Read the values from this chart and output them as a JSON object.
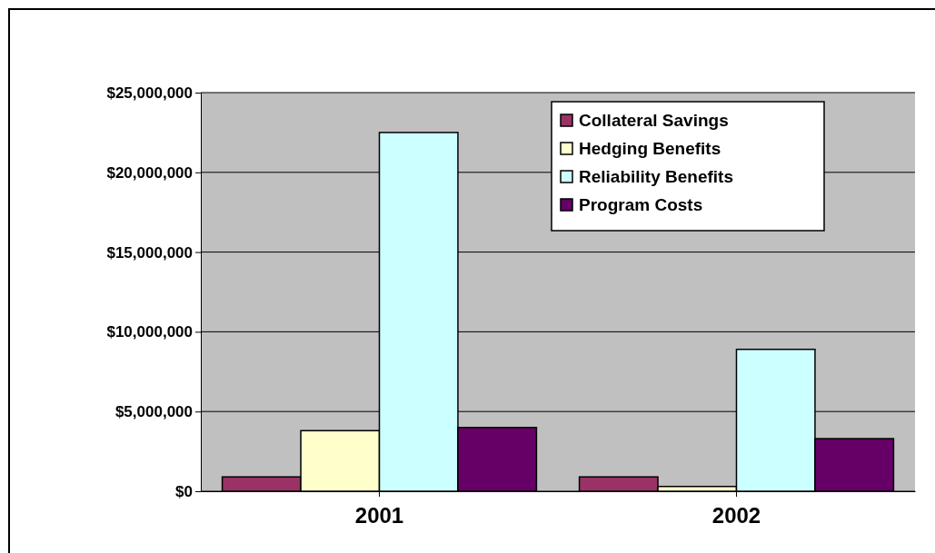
{
  "chart_data": {
    "type": "bar",
    "categories": [
      "2001",
      "2002"
    ],
    "series": [
      {
        "name": "Collateral Savings",
        "color": "#993366",
        "values": [
          900000,
          900000
        ]
      },
      {
        "name": "Hedging  Benefits",
        "color": "#ffffcc",
        "values": [
          3800000,
          300000
        ]
      },
      {
        "name": "Reliability Benefits",
        "color": "#ccffff",
        "values": [
          22500000,
          8900000
        ]
      },
      {
        "name": "Program Costs",
        "color": "#660066",
        "values": [
          4000000,
          3300000
        ]
      }
    ],
    "ylim": [
      0,
      25000000
    ],
    "yticks": [
      {
        "value": 0,
        "label": "$0"
      },
      {
        "value": 5000000,
        "label": "$5,000,000"
      },
      {
        "value": 10000000,
        "label": "$10,000,000"
      },
      {
        "value": 15000000,
        "label": "$15,000,000"
      },
      {
        "value": 20000000,
        "label": "$20,000,000"
      },
      {
        "value": 25000000,
        "label": "$25,000,000"
      }
    ],
    "grid": "y",
    "legend": "top right"
  }
}
